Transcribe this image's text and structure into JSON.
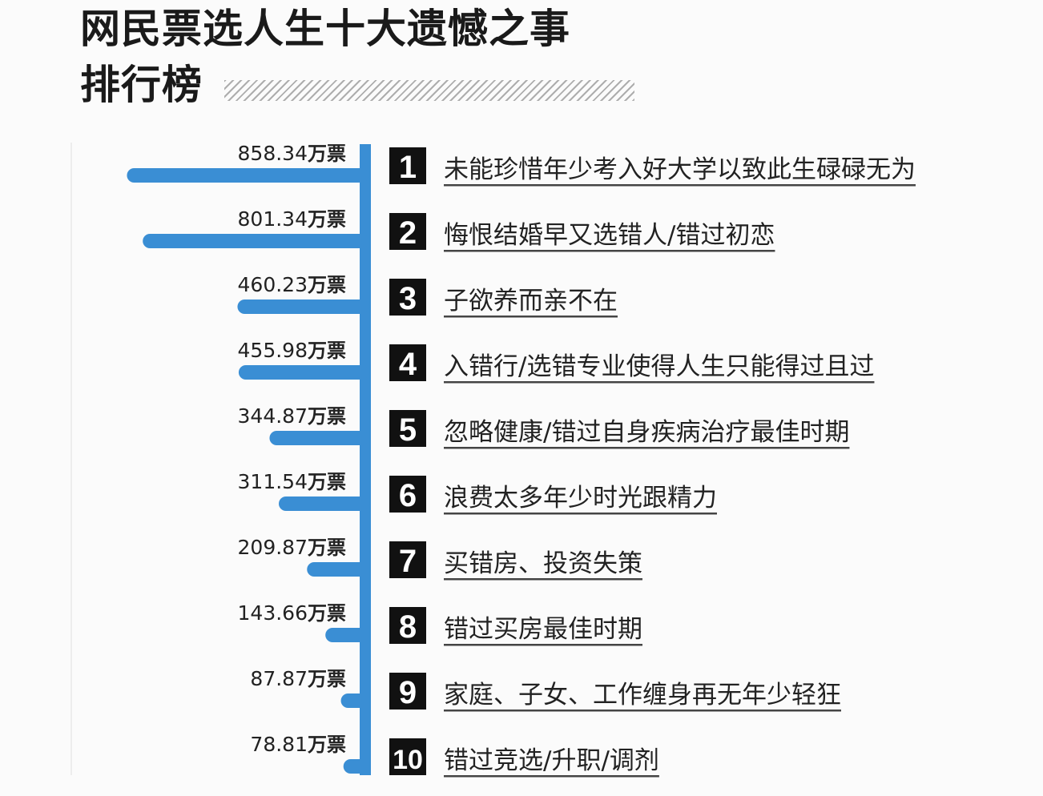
{
  "title": {
    "line1": "网民票选人生十大遗憾之事",
    "line2": "排行榜"
  },
  "unit_suffix": "万票",
  "colors": {
    "bar": "#3a8ed4",
    "axis": "#3a8ed4",
    "rank_bg": "#111111",
    "rank_text": "#ffffff",
    "text": "#222222",
    "underline": "#444444"
  },
  "chart_data": {
    "type": "bar",
    "orientation": "horizontal",
    "categories": [
      "未能珍惜年少考入好大学以致此生碌碌无为",
      "悔恨结婚早又选错人/错过初恋",
      "子欲养而亲不在",
      "入错行/选错专业使得人生只能得过且过",
      "忽略健康/错过自身疾病治疗最佳时期",
      "浪费太多年少时光跟精力",
      "买错房、投资失策",
      "错过买房最佳时期",
      "家庭、子女、工作缠身再无年少轻狂",
      "错过竞选/升职/调剂"
    ],
    "ranks": [
      "1",
      "2",
      "3",
      "4",
      "5",
      "6",
      "7",
      "8",
      "9",
      "10"
    ],
    "values": [
      858.34,
      801.34,
      460.23,
      455.98,
      344.87,
      311.54,
      209.87,
      143.66,
      87.87,
      78.81
    ],
    "value_labels": [
      "858.34",
      "801.34",
      "460.23",
      "455.98",
      "344.87",
      "311.54",
      "209.87",
      "143.66",
      "87.87",
      "78.81"
    ],
    "unit": "万票",
    "xlim": [
      0,
      900
    ]
  }
}
